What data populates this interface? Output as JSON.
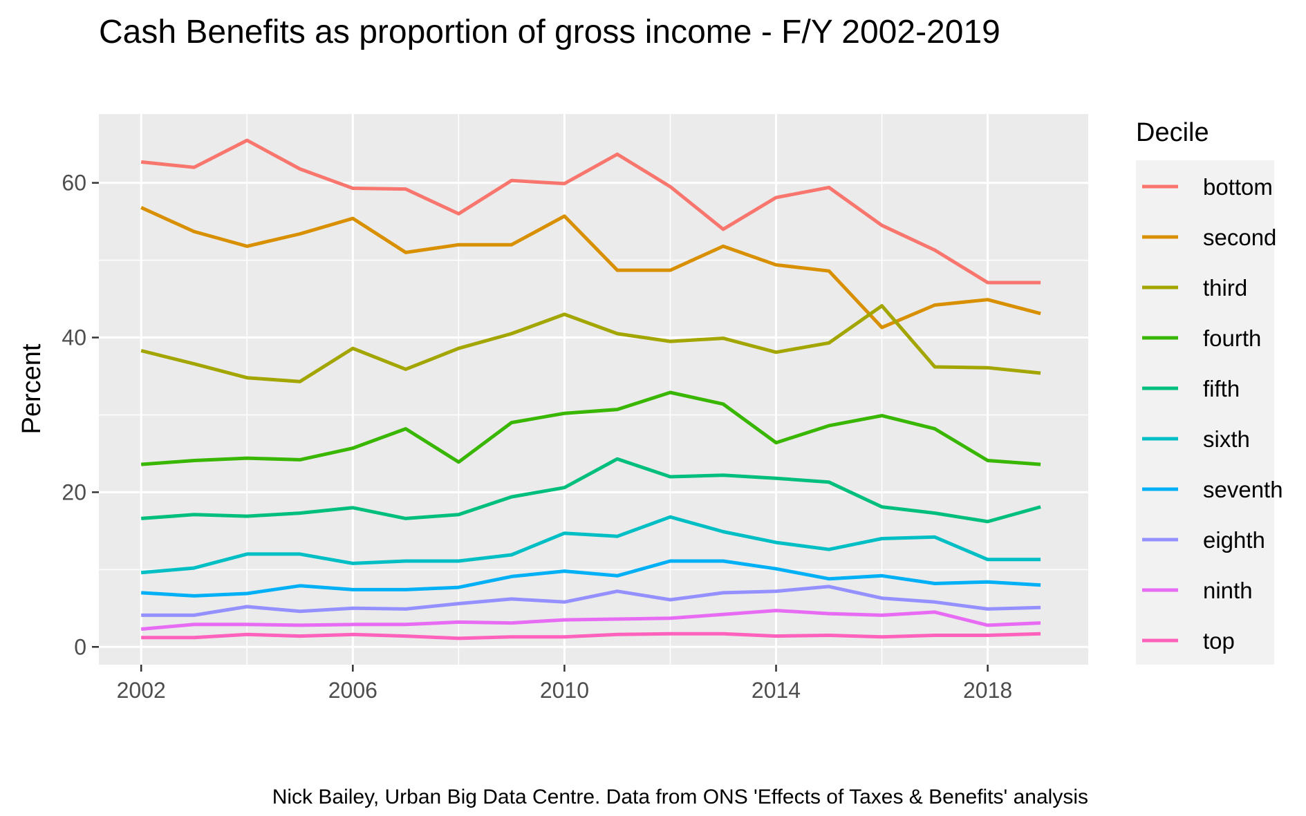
{
  "chart_data": {
    "type": "line",
    "title": "Cash Benefits as proportion of gross income - F/Y 2002-2019",
    "xlabel": "",
    "ylabel": "Percent",
    "caption": "Nick Bailey, Urban Big Data Centre. Data from ONS 'Effects of Taxes & Benefits' analysis",
    "legend_title": "Decile",
    "legend_position": "right",
    "grid": true,
    "xlim": [
      2001.2,
      2019.9
    ],
    "ylim": [
      -2.3,
      68.9
    ],
    "x_ticks": [
      2002,
      2006,
      2010,
      2014,
      2018
    ],
    "y_ticks": [
      0,
      20,
      40,
      60
    ],
    "x": [
      2002,
      2003,
      2004,
      2005,
      2006,
      2007,
      2008,
      2009,
      2010,
      2011,
      2012,
      2013,
      2014,
      2015,
      2016,
      2017,
      2018,
      2019
    ],
    "series": [
      {
        "name": "bottom",
        "color": "#F8766D",
        "values": [
          62.7,
          62.0,
          65.5,
          61.8,
          59.3,
          59.2,
          56.0,
          60.3,
          59.9,
          63.7,
          59.5,
          54.0,
          58.1,
          59.4,
          54.5,
          51.3,
          47.1,
          47.1
        ]
      },
      {
        "name": "second",
        "color": "#D89000",
        "values": [
          56.8,
          53.7,
          51.8,
          53.4,
          55.4,
          51.0,
          52.0,
          52.0,
          55.7,
          48.7,
          48.7,
          51.8,
          49.4,
          48.6,
          41.3,
          44.2,
          44.9,
          43.1
        ]
      },
      {
        "name": "third",
        "color": "#A3A500",
        "values": [
          38.3,
          36.6,
          34.8,
          34.3,
          38.6,
          35.9,
          38.6,
          40.5,
          43.0,
          40.5,
          39.5,
          39.9,
          38.1,
          39.3,
          44.1,
          36.2,
          36.1,
          35.4
        ]
      },
      {
        "name": "fourth",
        "color": "#39B600",
        "values": [
          23.6,
          24.1,
          24.4,
          24.2,
          25.7,
          28.2,
          23.9,
          29.0,
          30.2,
          30.7,
          32.9,
          31.4,
          26.4,
          28.6,
          29.9,
          28.2,
          24.1,
          23.6
        ]
      },
      {
        "name": "fifth",
        "color": "#00BF7D",
        "values": [
          16.6,
          17.1,
          16.9,
          17.3,
          18.0,
          16.6,
          17.1,
          19.4,
          20.6,
          24.3,
          22.0,
          22.2,
          21.8,
          21.3,
          18.1,
          17.3,
          16.2,
          18.1
        ]
      },
      {
        "name": "sixth",
        "color": "#00BFC4",
        "values": [
          9.6,
          10.2,
          12.0,
          12.0,
          10.8,
          11.1,
          11.1,
          11.9,
          14.7,
          14.3,
          16.8,
          14.9,
          13.5,
          12.6,
          14.0,
          14.2,
          11.3,
          11.3
        ]
      },
      {
        "name": "seventh",
        "color": "#00B0F6",
        "values": [
          7.0,
          6.6,
          6.9,
          7.9,
          7.4,
          7.4,
          7.7,
          9.1,
          9.8,
          9.2,
          11.1,
          11.1,
          10.1,
          8.8,
          9.2,
          8.2,
          8.4,
          8.0
        ]
      },
      {
        "name": "eighth",
        "color": "#9590FF",
        "values": [
          4.1,
          4.1,
          5.2,
          4.6,
          5.0,
          4.9,
          5.6,
          6.2,
          5.8,
          7.2,
          6.1,
          7.0,
          7.2,
          7.8,
          6.3,
          5.8,
          4.9,
          5.1
        ]
      },
      {
        "name": "ninth",
        "color": "#E76BF3",
        "values": [
          2.3,
          2.9,
          2.9,
          2.8,
          2.9,
          2.9,
          3.2,
          3.1,
          3.5,
          3.6,
          3.7,
          4.2,
          4.7,
          4.3,
          4.1,
          4.5,
          2.8,
          3.1
        ]
      },
      {
        "name": "top",
        "color": "#FF62BC",
        "values": [
          1.2,
          1.2,
          1.6,
          1.4,
          1.6,
          1.4,
          1.1,
          1.3,
          1.3,
          1.6,
          1.7,
          1.7,
          1.4,
          1.5,
          1.3,
          1.5,
          1.5,
          1.7
        ]
      }
    ]
  }
}
